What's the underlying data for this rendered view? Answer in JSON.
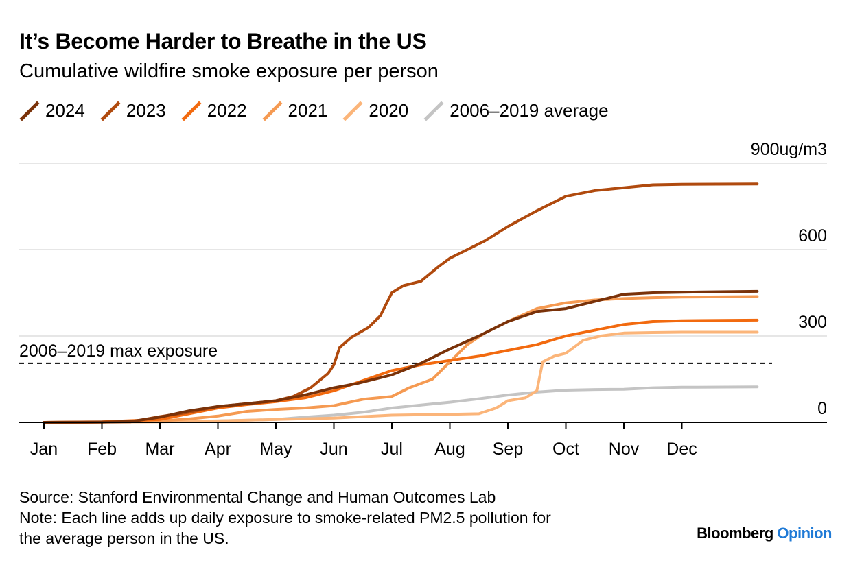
{
  "header": {
    "title": "It’s Become Harder to Breathe in the US",
    "subtitle": "Cumulative wildfire smoke exposure per person"
  },
  "footer": {
    "source": "Source: Stanford Environmental Change and Human Outcomes Lab",
    "note_line1": "Note: Each line adds up daily exposure to smoke-related PM2.5 pollution for",
    "note_line2": "the average person in the US.",
    "brand_main": "Bloomberg",
    "brand_accent": "Opinion"
  },
  "colors": {
    "2024": "#7a3209",
    "2023": "#b04a0e",
    "2022": "#f26a0f",
    "2021": "#f59a52",
    "2020": "#fbb57a",
    "avg": "#c4c4c4",
    "grid": "#e6e6e6",
    "axis": "#000000"
  },
  "chart_data": {
    "type": "line",
    "title": "It’s Become Harder to Breathe in the US",
    "subtitle": "Cumulative wildfire smoke exposure per person",
    "ylabel": "",
    "y_unit": "ug/m3",
    "ylim": [
      0,
      900
    ],
    "yticks": [
      0,
      300,
      600,
      900
    ],
    "ytick_labels": [
      "0",
      "300",
      "600",
      "900ug/m3"
    ],
    "x_range_months": [
      1,
      13
    ],
    "xticks": [
      1,
      2,
      3,
      4,
      5,
      6,
      7,
      8,
      9,
      10,
      11,
      12
    ],
    "xtick_labels": [
      "Jan",
      "Feb",
      "Mar",
      "Apr",
      "May",
      "Jun",
      "Jul",
      "Aug",
      "Sep",
      "Oct",
      "Nov",
      "Dec"
    ],
    "grid": true,
    "legend_position": "top-left",
    "reference_line": {
      "label": "2006–2019 max exposure",
      "value": 205
    },
    "series": [
      {
        "name": "2024",
        "color_key": "2024",
        "x": [
          1,
          2,
          2.5,
          3,
          3.5,
          4,
          4.5,
          5,
          5.5,
          6,
          6.4,
          7,
          7.5,
          8,
          8.5,
          9,
          9.5,
          10,
          10.5,
          11,
          11.5,
          12,
          13.3
        ],
        "values": [
          0,
          1,
          3,
          18,
          40,
          55,
          65,
          75,
          95,
          120,
          135,
          165,
          205,
          255,
          300,
          350,
          385,
          395,
          420,
          445,
          450,
          452,
          455
        ]
      },
      {
        "name": "2023",
        "color_key": "2023",
        "x": [
          1,
          2,
          2.5,
          3,
          3.5,
          4,
          4.5,
          5,
          5.3,
          5.6,
          5.9,
          6,
          6.1,
          6.3,
          6.6,
          6.8,
          7,
          7.2,
          7.5,
          7.8,
          8,
          8.3,
          8.6,
          9,
          9.5,
          10,
          10.5,
          11,
          11.5,
          12,
          13.3
        ],
        "values": [
          0,
          1,
          2,
          20,
          35,
          55,
          65,
          75,
          90,
          120,
          170,
          200,
          260,
          295,
          330,
          370,
          450,
          475,
          490,
          540,
          570,
          600,
          630,
          680,
          735,
          785,
          805,
          815,
          825,
          827,
          828
        ]
      },
      {
        "name": "2022",
        "color_key": "2022",
        "x": [
          1,
          2,
          3,
          3.5,
          4,
          4.5,
          5,
          5.5,
          6,
          6.5,
          7,
          7.5,
          8,
          8.5,
          9,
          9.5,
          10,
          10.5,
          11,
          11.5,
          12,
          13.3
        ],
        "values": [
          0,
          2,
          10,
          30,
          50,
          62,
          72,
          85,
          110,
          145,
          180,
          200,
          215,
          230,
          250,
          270,
          300,
          320,
          340,
          350,
          353,
          355
        ]
      },
      {
        "name": "2021",
        "color_key": "2021",
        "x": [
          1,
          2,
          3,
          3.5,
          4,
          4.5,
          5,
          5.5,
          6,
          6.5,
          7,
          7.3,
          7.7,
          8,
          8.3,
          8.6,
          9,
          9.5,
          10,
          10.5,
          11,
          11.5,
          12,
          13.3
        ],
        "values": [
          0,
          1,
          5,
          12,
          22,
          38,
          45,
          50,
          58,
          80,
          90,
          120,
          150,
          210,
          270,
          310,
          350,
          395,
          415,
          425,
          430,
          433,
          435,
          437
        ]
      },
      {
        "name": "2020",
        "color_key": "2020",
        "x": [
          1,
          3,
          4,
          5,
          6,
          6.5,
          7,
          8,
          8.5,
          8.8,
          9,
          9.3,
          9.5,
          9.6,
          9.8,
          10,
          10.3,
          10.6,
          11,
          11.5,
          12,
          13.3
        ],
        "values": [
          0,
          2,
          5,
          10,
          15,
          20,
          25,
          28,
          30,
          50,
          75,
          85,
          110,
          210,
          230,
          240,
          285,
          300,
          310,
          312,
          313,
          313
        ]
      },
      {
        "name": "2006–2019 average",
        "color_key": "avg",
        "x": [
          1,
          4,
          5,
          5.5,
          6,
          6.5,
          7,
          7.5,
          8,
          8.5,
          9,
          9.5,
          10,
          10.5,
          11,
          11.5,
          12,
          13.3
        ],
        "values": [
          0,
          5,
          10,
          18,
          25,
          35,
          50,
          60,
          70,
          82,
          95,
          105,
          112,
          114,
          115,
          120,
          122,
          123
        ]
      }
    ]
  }
}
